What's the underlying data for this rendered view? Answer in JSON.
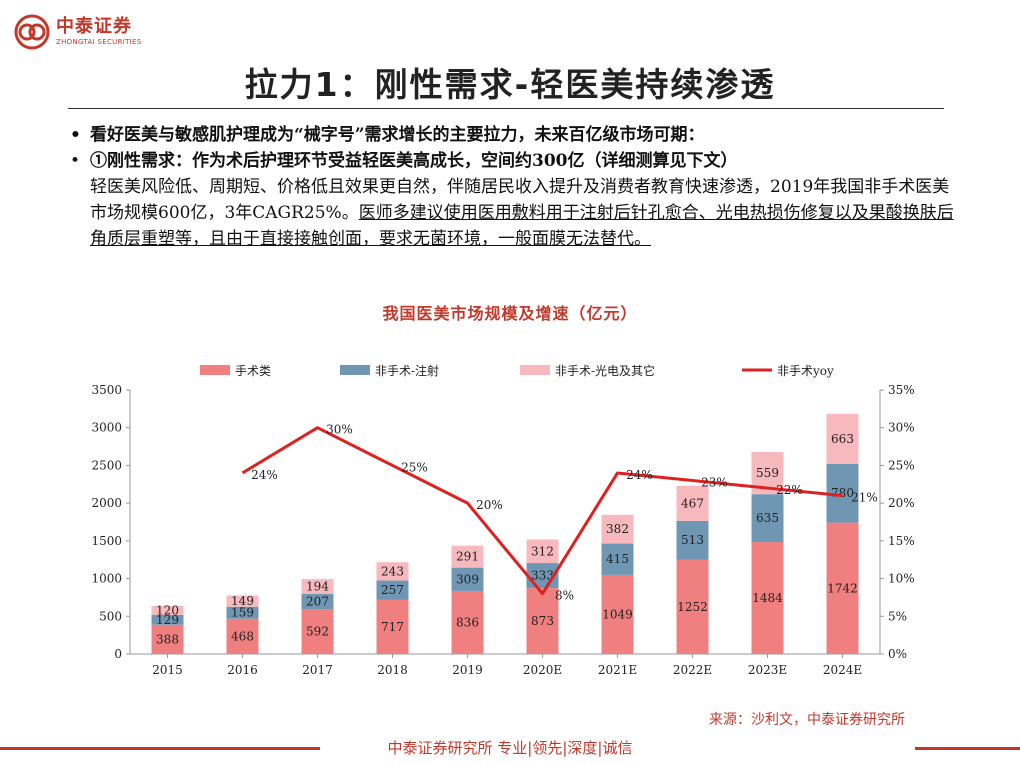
{
  "header": {
    "brand_cn": "中泰证券",
    "brand_en": "ZHONGTAI SECURITIES"
  },
  "slide": {
    "title": "拉力1：刚性需求-轻医美持续渗透",
    "bullet1": "看好医美与敏感肌护理成为“械字号”需求增长的主要拉力，未来百亿级市场可期：",
    "bullet2_lead": "①刚性需求：作为术后护理环节受益轻医美高成长，空间约300亿（详细测算见下文）",
    "bullet2_body": "轻医美风险低、周期短、价格低且效果更自然，伴随居民收入提升及消费者教育快速渗透，2019年我国非手术医美市场规模600亿，3年CAGR25%。",
    "bullet2_underlined": "医师多建议使用医用敷料用于注射后针孔愈合、光电热损伤修复以及果酸换肤后角质层重塑等，且由于直接接触创面，要求无菌环境，一般面膜无法替代。",
    "bullet_marker": "•",
    "chart_title": "我国医美市场规模及增速（亿元）",
    "source": "来源：沙利文，中泰证券研究所",
    "footer": "中泰证券研究所 专业|领先|深度|诚信"
  },
  "colors": {
    "brand_red": "#c0392b",
    "surgical": "#f08080",
    "injection": "#6f97b4",
    "optical": "#f7b9bd",
    "yoy_line": "#e02020"
  },
  "chart_data": {
    "type": "bar",
    "stacked": true,
    "categories": [
      "2015",
      "2016",
      "2017",
      "2018",
      "2019",
      "2020E",
      "2021E",
      "2022E",
      "2023E",
      "2024E"
    ],
    "series": [
      {
        "name": "手术类",
        "values": [
          388,
          468,
          592,
          717,
          836,
          873,
          1049,
          1252,
          1484,
          1742
        ]
      },
      {
        "name": "非手术-注射",
        "values": [
          129,
          159,
          207,
          257,
          309,
          333,
          415,
          513,
          635,
          780
        ]
      },
      {
        "name": "非手术-光电及其它",
        "values": [
          120,
          149,
          194,
          243,
          291,
          312,
          382,
          467,
          559,
          663
        ]
      }
    ],
    "line_series": {
      "name": "非手术yoy",
      "axis": "right",
      "values": [
        null,
        24,
        30,
        25,
        20,
        8,
        24,
        23,
        22,
        21
      ],
      "labels": [
        "",
        "24%",
        "30%",
        "25%",
        "20%",
        "8%",
        "24%",
        "23%",
        "22%",
        "21%"
      ]
    },
    "y_left": {
      "lim": [
        0,
        3500
      ],
      "ticks": [
        "0",
        "500",
        "1000",
        "1500",
        "2000",
        "2500",
        "3000",
        "3500"
      ]
    },
    "y_right": {
      "lim": [
        0,
        35
      ],
      "ticks": [
        "0%",
        "5%",
        "10%",
        "15%",
        "20%",
        "25%",
        "30%",
        "35%"
      ]
    },
    "legend_position": "top",
    "grid": false
  }
}
